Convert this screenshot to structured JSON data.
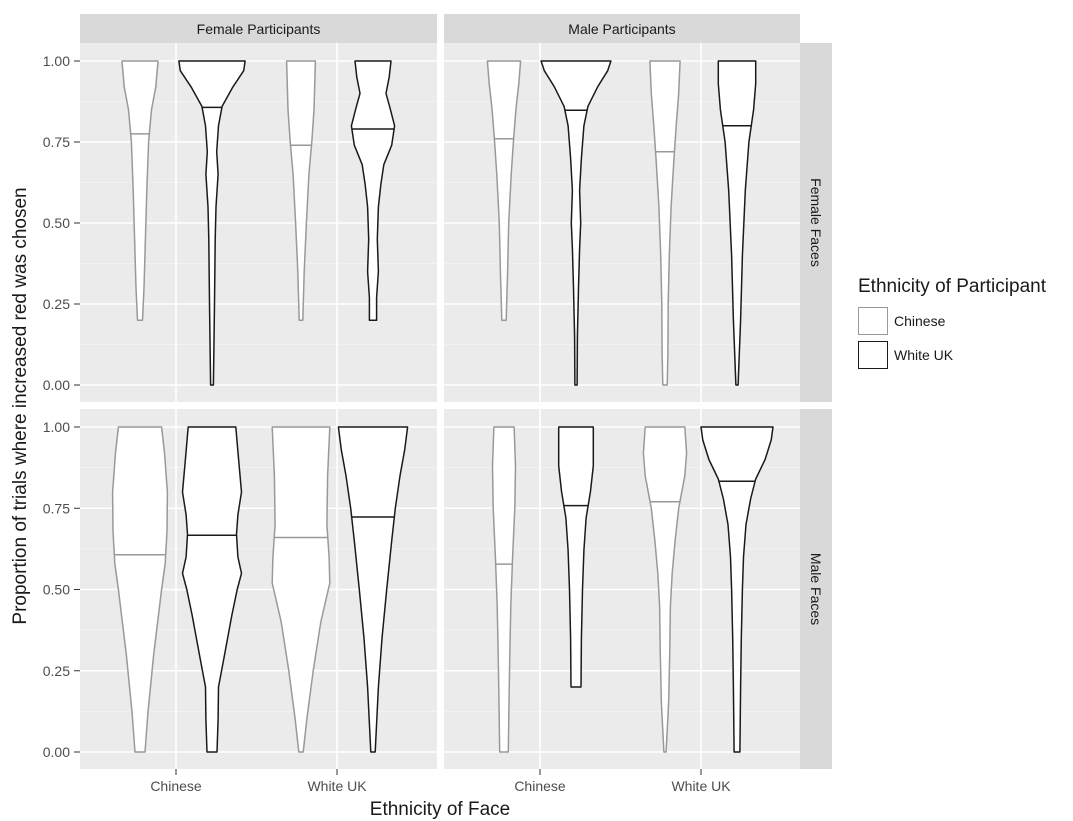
{
  "chart_data": {
    "type": "violin",
    "xlabel": "Ethnicity of Face",
    "ylabel": "Proportion of trials where increased red was chosen",
    "categories": [
      "Chinese",
      "White UK"
    ],
    "column_facets": [
      "Female Participants",
      "Male Participants"
    ],
    "row_facets": [
      "Female Faces",
      "Male Faces"
    ],
    "y_ticks": [
      "0.00",
      "0.25",
      "0.50",
      "0.75",
      "1.00"
    ],
    "ylim": [
      0,
      1
    ],
    "grid": true,
    "legend": {
      "title": "Ethnicity of Participant",
      "placement": "right",
      "entries": [
        {
          "label": "Chinese",
          "color": "#999999"
        },
        {
          "label": "White UK",
          "color": "#1a1a1a"
        }
      ]
    },
    "panels": [
      {
        "row": "Female Faces",
        "col": "Female Participants",
        "violins": [
          {
            "face": "Chinese",
            "participant": "Chinese",
            "median": 0.775,
            "min": 0.2,
            "max": 1.0,
            "profile": [
              [
                0.2,
                0.07
              ],
              [
                0.3,
                0.11
              ],
              [
                0.45,
                0.15
              ],
              [
                0.6,
                0.19
              ],
              [
                0.75,
                0.24
              ],
              [
                0.85,
                0.32
              ],
              [
                0.92,
                0.44
              ],
              [
                1.0,
                0.5
              ]
            ]
          },
          {
            "face": "Chinese",
            "participant": "White UK",
            "median": 0.857,
            "min": 0.0,
            "max": 1.0,
            "profile": [
              [
                0.0,
                0.04
              ],
              [
                0.25,
                0.07
              ],
              [
                0.45,
                0.09
              ],
              [
                0.55,
                0.11
              ],
              [
                0.65,
                0.17
              ],
              [
                0.72,
                0.13
              ],
              [
                0.8,
                0.18
              ],
              [
                0.86,
                0.28
              ],
              [
                0.92,
                0.58
              ],
              [
                0.97,
                0.88
              ],
              [
                1.0,
                0.92
              ]
            ]
          },
          {
            "face": "White UK",
            "participant": "Chinese",
            "median": 0.74,
            "min": 0.2,
            "max": 1.0,
            "profile": [
              [
                0.2,
                0.05
              ],
              [
                0.35,
                0.09
              ],
              [
                0.5,
                0.15
              ],
              [
                0.65,
                0.22
              ],
              [
                0.75,
                0.3
              ],
              [
                0.85,
                0.36
              ],
              [
                1.0,
                0.4
              ]
            ]
          },
          {
            "face": "White UK",
            "participant": "White UK",
            "median": 0.79,
            "min": 0.2,
            "max": 1.0,
            "profile": [
              [
                0.2,
                0.1
              ],
              [
                0.27,
                0.1
              ],
              [
                0.35,
                0.15
              ],
              [
                0.45,
                0.12
              ],
              [
                0.55,
                0.15
              ],
              [
                0.62,
                0.22
              ],
              [
                0.68,
                0.3
              ],
              [
                0.74,
                0.52
              ],
              [
                0.8,
                0.6
              ],
              [
                0.86,
                0.46
              ],
              [
                0.9,
                0.36
              ],
              [
                0.95,
                0.45
              ],
              [
                1.0,
                0.5
              ]
            ]
          }
        ]
      },
      {
        "row": "Female Faces",
        "col": "Male Participants",
        "violins": [
          {
            "face": "Chinese",
            "participant": "Chinese",
            "median": 0.76,
            "min": 0.2,
            "max": 1.0,
            "profile": [
              [
                0.2,
                0.06
              ],
              [
                0.35,
                0.1
              ],
              [
                0.5,
                0.13
              ],
              [
                0.65,
                0.2
              ],
              [
                0.75,
                0.26
              ],
              [
                0.85,
                0.33
              ],
              [
                0.93,
                0.41
              ],
              [
                1.0,
                0.46
              ]
            ]
          },
          {
            "face": "Chinese",
            "participant": "White UK",
            "median": 0.848,
            "min": 0.0,
            "max": 1.0,
            "profile": [
              [
                0.0,
                0.03
              ],
              [
                0.15,
                0.04
              ],
              [
                0.3,
                0.07
              ],
              [
                0.42,
                0.1
              ],
              [
                0.5,
                0.13
              ],
              [
                0.6,
                0.1
              ],
              [
                0.7,
                0.15
              ],
              [
                0.8,
                0.22
              ],
              [
                0.86,
                0.33
              ],
              [
                0.92,
                0.6
              ],
              [
                0.97,
                0.88
              ],
              [
                1.0,
                0.97
              ]
            ]
          },
          {
            "face": "White UK",
            "participant": "Chinese",
            "median": 0.72,
            "min": 0.0,
            "max": 1.0,
            "profile": [
              [
                0.0,
                0.06
              ],
              [
                0.1,
                0.08
              ],
              [
                0.25,
                0.09
              ],
              [
                0.4,
                0.12
              ],
              [
                0.55,
                0.17
              ],
              [
                0.7,
                0.25
              ],
              [
                0.8,
                0.31
              ],
              [
                0.9,
                0.38
              ],
              [
                1.0,
                0.42
              ]
            ]
          },
          {
            "face": "White UK",
            "participant": "White UK",
            "median": 0.8,
            "min": 0.0,
            "max": 1.0,
            "profile": [
              [
                0.0,
                0.03
              ],
              [
                0.2,
                0.1
              ],
              [
                0.4,
                0.15
              ],
              [
                0.6,
                0.23
              ],
              [
                0.75,
                0.33
              ],
              [
                0.85,
                0.46
              ],
              [
                0.93,
                0.52
              ],
              [
                1.0,
                0.52
              ]
            ]
          }
        ]
      },
      {
        "row": "Male Faces",
        "col": "Female Participants",
        "violins": [
          {
            "face": "Chinese",
            "participant": "Chinese",
            "median": 0.607,
            "min": 0.0,
            "max": 1.0,
            "profile": [
              [
                0.0,
                0.14
              ],
              [
                0.12,
                0.22
              ],
              [
                0.3,
                0.38
              ],
              [
                0.5,
                0.6
              ],
              [
                0.58,
                0.7
              ],
              [
                0.68,
                0.75
              ],
              [
                0.8,
                0.76
              ],
              [
                0.92,
                0.68
              ],
              [
                1.0,
                0.6
              ]
            ]
          },
          {
            "face": "Chinese",
            "participant": "White UK",
            "median": 0.667,
            "min": 0.0,
            "max": 1.0,
            "profile": [
              [
                0.0,
                0.14
              ],
              [
                0.1,
                0.17
              ],
              [
                0.2,
                0.18
              ],
              [
                0.3,
                0.35
              ],
              [
                0.42,
                0.55
              ],
              [
                0.5,
                0.7
              ],
              [
                0.55,
                0.82
              ],
              [
                0.6,
                0.72
              ],
              [
                0.67,
                0.68
              ],
              [
                0.73,
                0.72
              ],
              [
                0.8,
                0.82
              ],
              [
                0.9,
                0.74
              ],
              [
                1.0,
                0.66
              ]
            ]
          },
          {
            "face": "White UK",
            "participant": "Chinese",
            "median": 0.66,
            "min": 0.0,
            "max": 1.0,
            "profile": [
              [
                0.0,
                0.06
              ],
              [
                0.1,
                0.16
              ],
              [
                0.25,
                0.34
              ],
              [
                0.4,
                0.55
              ],
              [
                0.52,
                0.8
              ],
              [
                0.6,
                0.78
              ],
              [
                0.7,
                0.72
              ],
              [
                0.85,
                0.74
              ],
              [
                1.0,
                0.8
              ]
            ]
          },
          {
            "face": "White UK",
            "participant": "White UK",
            "median": 0.723,
            "min": 0.0,
            "max": 1.0,
            "profile": [
              [
                0.0,
                0.06
              ],
              [
                0.2,
                0.15
              ],
              [
                0.35,
                0.25
              ],
              [
                0.5,
                0.38
              ],
              [
                0.65,
                0.52
              ],
              [
                0.75,
                0.62
              ],
              [
                0.85,
                0.75
              ],
              [
                0.93,
                0.88
              ],
              [
                1.0,
                0.96
              ]
            ]
          }
        ]
      },
      {
        "row": "Male Faces",
        "col": "Male Participants",
        "violins": [
          {
            "face": "Chinese",
            "participant": "Chinese",
            "median": 0.578,
            "min": 0.0,
            "max": 1.0,
            "profile": [
              [
                0.0,
                0.12
              ],
              [
                0.15,
                0.14
              ],
              [
                0.3,
                0.16
              ],
              [
                0.45,
                0.19
              ],
              [
                0.6,
                0.24
              ],
              [
                0.75,
                0.3
              ],
              [
                0.88,
                0.32
              ],
              [
                1.0,
                0.28
              ]
            ]
          },
          {
            "face": "Chinese",
            "participant": "White UK",
            "median": 0.758,
            "min": 0.2,
            "max": 1.0,
            "profile": [
              [
                0.2,
                0.14
              ],
              [
                0.35,
                0.15
              ],
              [
                0.5,
                0.18
              ],
              [
                0.62,
                0.22
              ],
              [
                0.72,
                0.28
              ],
              [
                0.8,
                0.4
              ],
              [
                0.88,
                0.48
              ],
              [
                1.0,
                0.48
              ]
            ]
          },
          {
            "face": "White UK",
            "participant": "Chinese",
            "median": 0.77,
            "min": 0.0,
            "max": 1.0,
            "profile": [
              [
                0.0,
                0.03
              ],
              [
                0.15,
                0.1
              ],
              [
                0.3,
                0.13
              ],
              [
                0.45,
                0.15
              ],
              [
                0.55,
                0.2
              ],
              [
                0.65,
                0.28
              ],
              [
                0.75,
                0.38
              ],
              [
                0.85,
                0.55
              ],
              [
                0.92,
                0.6
              ],
              [
                1.0,
                0.55
              ]
            ]
          },
          {
            "face": "White UK",
            "participant": "White UK",
            "median": 0.833,
            "min": 0.0,
            "max": 1.0,
            "profile": [
              [
                0.0,
                0.08
              ],
              [
                0.2,
                0.1
              ],
              [
                0.35,
                0.12
              ],
              [
                0.5,
                0.15
              ],
              [
                0.6,
                0.18
              ],
              [
                0.7,
                0.25
              ],
              [
                0.78,
                0.38
              ],
              [
                0.84,
                0.52
              ],
              [
                0.9,
                0.78
              ],
              [
                0.96,
                0.95
              ],
              [
                1.0,
                1.0
              ]
            ]
          }
        ]
      }
    ]
  }
}
